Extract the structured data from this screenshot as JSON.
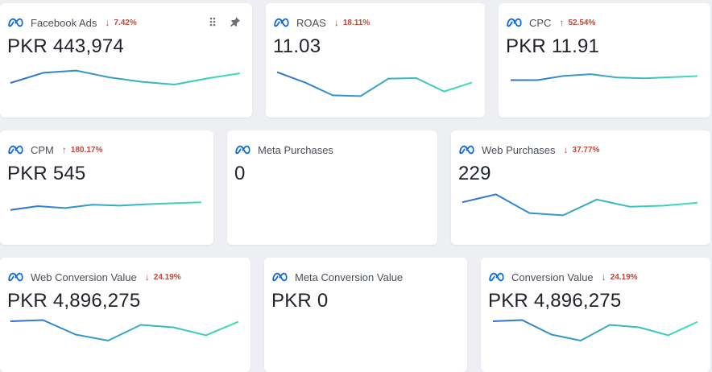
{
  "cards": [
    {
      "title": "Facebook Ads",
      "value": "PKR 443,974",
      "delta": "7.42%",
      "direction": "down",
      "tools": true,
      "series": [
        0.25,
        0.7,
        0.8,
        0.5,
        0.3,
        0.18,
        0.45,
        0.68
      ]
    },
    {
      "title": "ROAS",
      "value": "11.03",
      "delta": "18.11%",
      "direction": "down",
      "series": [
        0.95,
        0.55,
        0.05,
        0.02,
        0.7,
        0.72,
        0.2,
        0.55
      ]
    },
    {
      "title": "CPC",
      "value": "PKR 11.91",
      "delta": "52.54%",
      "direction": "up",
      "series": [
        0.32,
        0.32,
        0.7,
        0.85,
        0.55,
        0.48,
        0.58,
        0.68
      ]
    },
    {
      "title": "CPM",
      "value": "PKR 545",
      "delta": "180.17%",
      "direction": "up",
      "series": [
        0.1,
        0.5,
        0.3,
        0.65,
        0.55,
        0.7,
        0.8,
        0.9
      ]
    },
    {
      "title": "Meta Purchases",
      "value": "0",
      "delta": "",
      "direction": "",
      "series": [
        0,
        0,
        0,
        0,
        0,
        0,
        0,
        0
      ]
    },
    {
      "title": "Web Purchases",
      "value": "229",
      "delta": "37.77%",
      "direction": "down",
      "series": [
        0.6,
        0.95,
        0.12,
        0.02,
        0.72,
        0.4,
        0.45,
        0.58
      ]
    },
    {
      "title": "Web Conversion Value",
      "value": "PKR 4,896,275",
      "delta": "24.19%",
      "direction": "down",
      "series": [
        0.9,
        0.95,
        0.35,
        0.1,
        0.75,
        0.65,
        0.32,
        0.88
      ]
    },
    {
      "title": "Meta Conversion Value",
      "value": "PKR 0",
      "delta": "",
      "direction": "",
      "series": [
        0,
        0,
        0,
        0,
        0,
        0,
        0,
        0
      ]
    },
    {
      "title": "Conversion Value",
      "value": "PKR 4,896,275",
      "delta": "24.19%",
      "direction": "down",
      "series": [
        0.9,
        0.95,
        0.35,
        0.1,
        0.75,
        0.65,
        0.32,
        0.88
      ]
    }
  ],
  "colors": {
    "line_start": "#2e6fd1",
    "line_end": "#3fe0b8",
    "delta_negative": "#c0473a",
    "meta_blue": "#0668e1"
  },
  "icons": {
    "meta": "meta-logo-icon",
    "drag": "drag-handle-icon",
    "pin": "pin-icon",
    "down": "arrow-down-icon",
    "up": "arrow-up-icon"
  }
}
